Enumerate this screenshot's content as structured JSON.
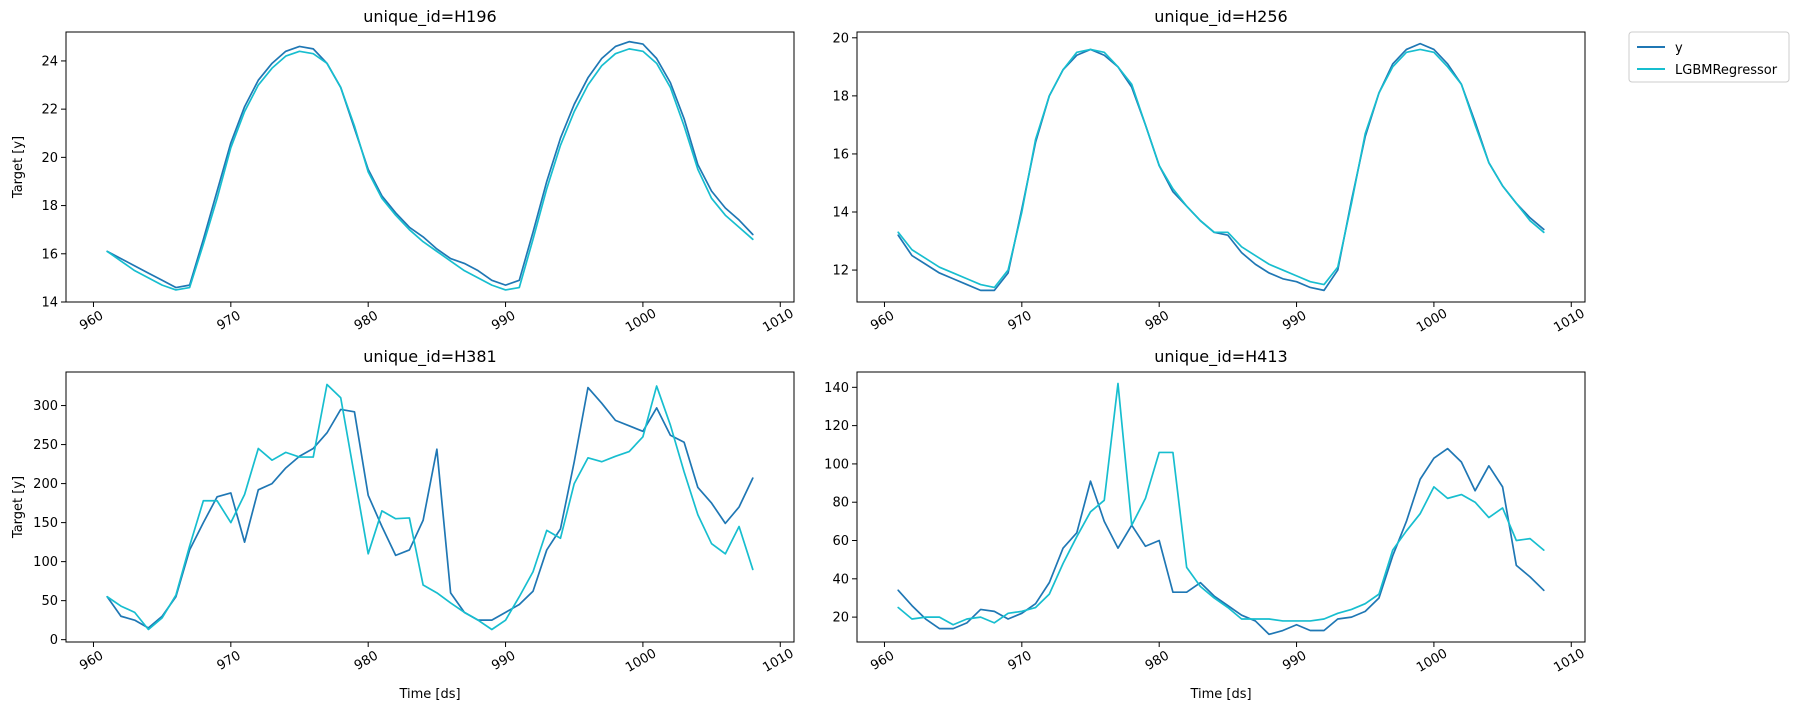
{
  "chart_data": [
    {
      "type": "line",
      "title": "unique_id=H196",
      "xlabel": "",
      "ylabel": "Target [y]",
      "xlim": [
        958,
        1011
      ],
      "ylim": [
        14,
        25.2
      ],
      "xticks": [
        960,
        970,
        980,
        990,
        1000,
        1010
      ],
      "yticks": [
        14,
        16,
        18,
        20,
        22,
        24
      ],
      "x_start": 961,
      "series": [
        {
          "name": "y",
          "color": "#1f77b4",
          "values": [
            16.1,
            15.8,
            15.5,
            15.2,
            14.9,
            14.6,
            14.7,
            16.6,
            18.6,
            20.6,
            22.1,
            23.2,
            23.9,
            24.4,
            24.6,
            24.5,
            23.9,
            22.9,
            21.2,
            19.5,
            18.4,
            17.7,
            17.1,
            16.7,
            16.2,
            15.8,
            15.6,
            15.3,
            14.9,
            14.7,
            14.9,
            16.9,
            19.0,
            20.8,
            22.2,
            23.3,
            24.1,
            24.6,
            24.8,
            24.7,
            24.1,
            23.1,
            21.6,
            19.7,
            18.6,
            17.9,
            17.4,
            16.8
          ]
        },
        {
          "name": "LGBMRegressor",
          "color": "#17becf",
          "values": [
            16.1,
            15.7,
            15.3,
            15.0,
            14.7,
            14.5,
            14.6,
            16.4,
            18.3,
            20.4,
            21.9,
            23.0,
            23.7,
            24.2,
            24.4,
            24.3,
            23.9,
            22.9,
            21.3,
            19.4,
            18.3,
            17.6,
            17.0,
            16.5,
            16.1,
            15.7,
            15.3,
            15.0,
            14.7,
            14.5,
            14.6,
            16.6,
            18.7,
            20.5,
            21.9,
            23.0,
            23.8,
            24.3,
            24.5,
            24.4,
            23.9,
            22.9,
            21.3,
            19.5,
            18.3,
            17.6,
            17.1,
            16.6
          ]
        }
      ]
    },
    {
      "type": "line",
      "title": "unique_id=H256",
      "xlabel": "",
      "ylabel": "",
      "xlim": [
        958,
        1011
      ],
      "ylim": [
        10.9,
        20.2
      ],
      "xticks": [
        960,
        970,
        980,
        990,
        1000,
        1010
      ],
      "yticks": [
        12,
        14,
        16,
        18,
        20
      ],
      "x_start": 961,
      "series": [
        {
          "name": "y",
          "color": "#1f77b4",
          "values": [
            13.2,
            12.5,
            12.2,
            11.9,
            11.7,
            11.5,
            11.3,
            11.3,
            11.9,
            14.1,
            16.4,
            18.0,
            18.9,
            19.4,
            19.6,
            19.4,
            19.0,
            18.3,
            17.0,
            15.6,
            14.7,
            14.2,
            13.7,
            13.3,
            13.2,
            12.6,
            12.2,
            11.9,
            11.7,
            11.6,
            11.4,
            11.3,
            12.0,
            14.4,
            16.6,
            18.1,
            19.1,
            19.6,
            19.8,
            19.6,
            19.1,
            18.4,
            17.1,
            15.7,
            14.9,
            14.3,
            13.8,
            13.4
          ]
        },
        {
          "name": "LGBMRegressor",
          "color": "#17becf",
          "values": [
            13.3,
            12.7,
            12.4,
            12.1,
            11.9,
            11.7,
            11.5,
            11.4,
            12.0,
            14.0,
            16.5,
            18.0,
            18.9,
            19.5,
            19.6,
            19.5,
            19.0,
            18.4,
            17.0,
            15.6,
            14.8,
            14.2,
            13.7,
            13.3,
            13.3,
            12.8,
            12.5,
            12.2,
            12.0,
            11.8,
            11.6,
            11.5,
            12.1,
            14.3,
            16.7,
            18.1,
            19.0,
            19.5,
            19.6,
            19.5,
            19.0,
            18.4,
            17.0,
            15.7,
            14.9,
            14.3,
            13.7,
            13.3
          ]
        }
      ]
    },
    {
      "type": "line",
      "title": "unique_id=H381",
      "xlabel": "Time [ds]",
      "ylabel": "Target [y]",
      "xlim": [
        958,
        1011
      ],
      "ylim": [
        -3,
        343
      ],
      "xticks": [
        960,
        970,
        980,
        990,
        1000,
        1010
      ],
      "yticks": [
        0,
        50,
        100,
        150,
        200,
        250,
        300
      ],
      "x_start": 961,
      "series": [
        {
          "name": "y",
          "color": "#1f77b4",
          "values": [
            55,
            30,
            25,
            15,
            30,
            55,
            115,
            150,
            183,
            188,
            125,
            192,
            200,
            220,
            235,
            245,
            265,
            295,
            292,
            185,
            145,
            108,
            115,
            153,
            244,
            60,
            35,
            25,
            25,
            35,
            45,
            62,
            115,
            142,
            228,
            323,
            303,
            281,
            274,
            267,
            297,
            262,
            253,
            195,
            175,
            149,
            170,
            207
          ]
        },
        {
          "name": "LGBMRegressor",
          "color": "#17becf",
          "values": [
            55,
            43,
            35,
            13,
            28,
            57,
            120,
            178,
            178,
            150,
            186,
            245,
            230,
            240,
            234,
            234,
            327,
            310,
            210,
            110,
            165,
            155,
            156,
            70,
            60,
            47,
            35,
            25,
            13,
            25,
            55,
            87,
            140,
            130,
            200,
            233,
            228,
            235,
            241,
            260,
            325,
            275,
            215,
            160,
            123,
            110,
            145,
            90
          ]
        }
      ]
    },
    {
      "type": "line",
      "title": "unique_id=H413",
      "xlabel": "Time [ds]",
      "ylabel": "",
      "xlim": [
        958,
        1011
      ],
      "ylim": [
        7,
        148
      ],
      "xticks": [
        960,
        970,
        980,
        990,
        1000,
        1010
      ],
      "yticks": [
        20,
        40,
        60,
        80,
        100,
        120,
        140
      ],
      "x_start": 961,
      "series": [
        {
          "name": "y",
          "color": "#1f77b4",
          "values": [
            34,
            26,
            19,
            14,
            14,
            17,
            24,
            23,
            19,
            22,
            27,
            38,
            56,
            64,
            91,
            70,
            56,
            68,
            57,
            60,
            33,
            33,
            38,
            31,
            26,
            21,
            18,
            11,
            13,
            16,
            13,
            13,
            19,
            20,
            23,
            30,
            52,
            70,
            92,
            103,
            108,
            101,
            86,
            99,
            88,
            47,
            41,
            34
          ]
        },
        {
          "name": "LGBMRegressor",
          "color": "#17becf",
          "values": [
            25,
            19,
            20,
            20,
            16,
            19,
            20,
            17,
            22,
            23,
            25,
            32,
            48,
            62,
            75,
            81,
            142,
            68,
            82,
            106,
            106,
            46,
            36,
            30,
            25,
            19,
            19,
            19,
            18,
            18,
            18,
            19,
            22,
            24,
            27,
            32,
            55,
            65,
            74,
            88,
            82,
            84,
            80,
            72,
            77,
            60,
            61,
            55
          ]
        }
      ]
    }
  ],
  "legend": {
    "position": "outside-top-right",
    "entries": [
      {
        "label": "y",
        "color": "#1f77b4"
      },
      {
        "label": "LGBMRegressor",
        "color": "#17becf"
      }
    ]
  }
}
